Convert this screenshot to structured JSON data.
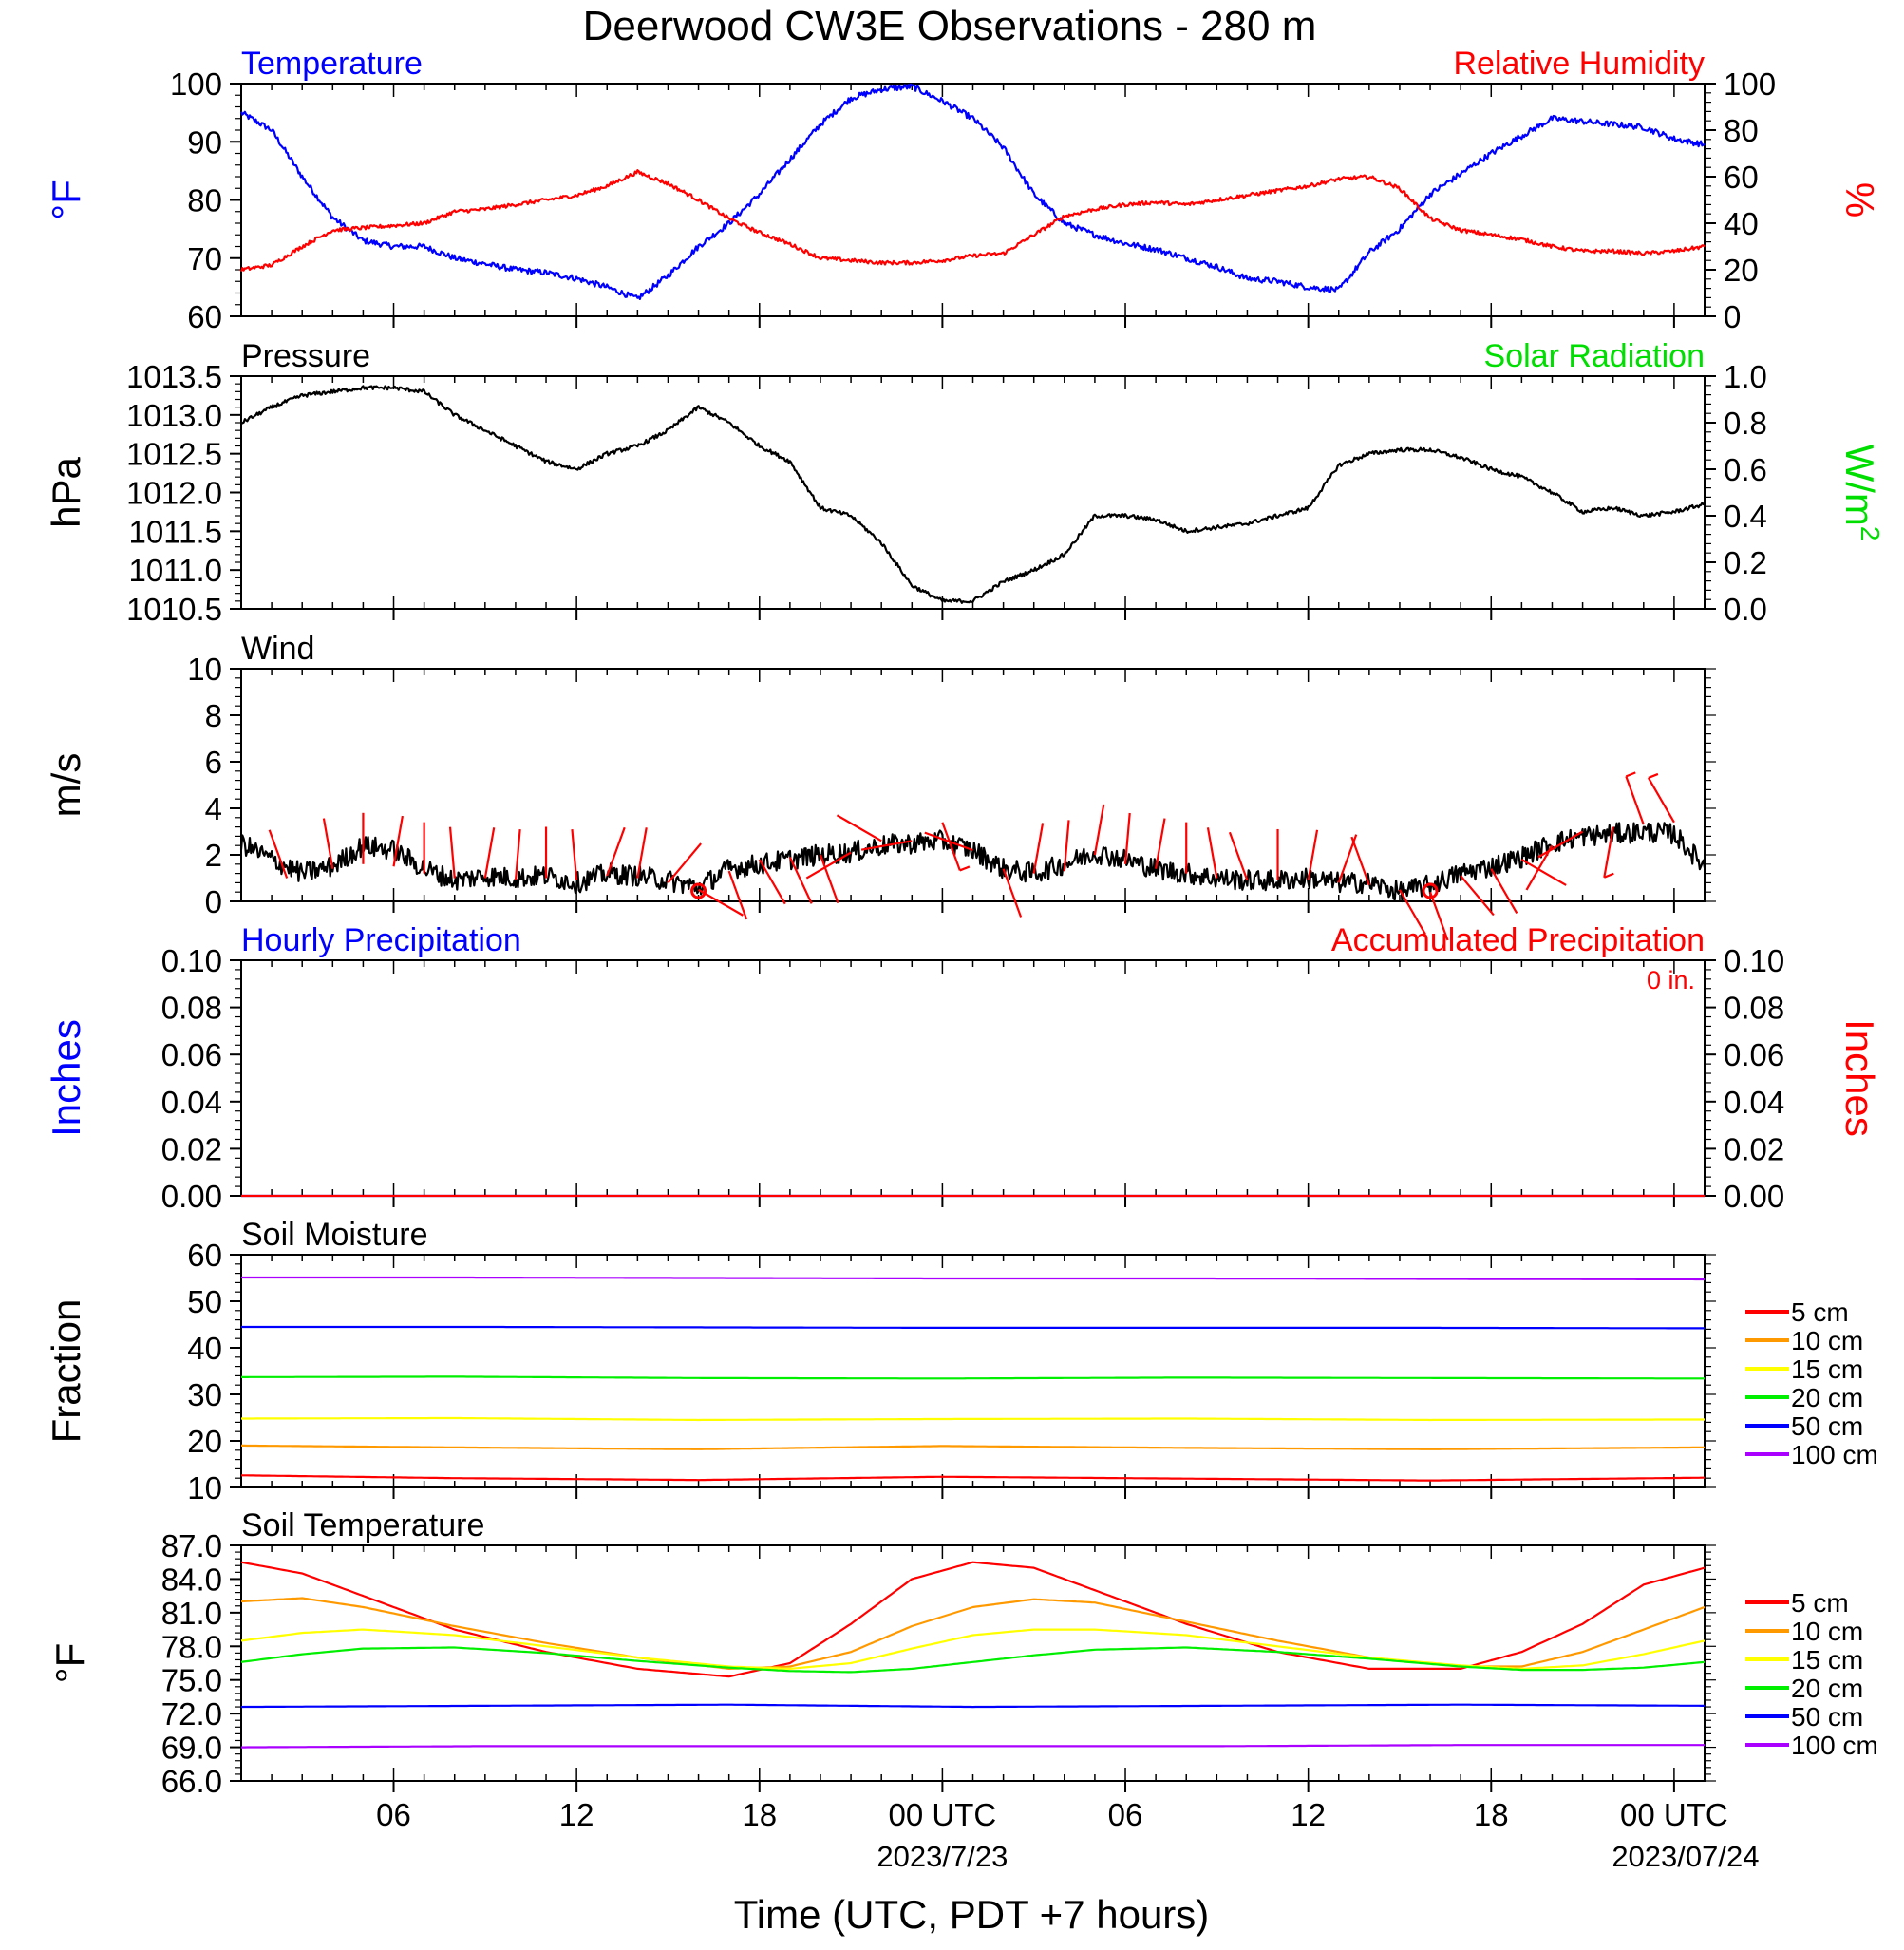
{
  "title": "Deerwood CW3E Observations - 280 m",
  "xaxis": {
    "label": "Time (UTC, PDT +7 hours)",
    "ticks": [
      "06",
      "12",
      "18",
      "00 UTC",
      "06",
      "12",
      "18",
      "00 UTC"
    ],
    "tick_hours": [
      6,
      12,
      18,
      24,
      30,
      36,
      42,
      48
    ],
    "dates": [
      "2023/7/23",
      "2023/07/24"
    ],
    "date_hours": [
      24,
      48
    ],
    "range_hours": [
      1,
      49
    ]
  },
  "colors": {
    "temperature": "#0000ff",
    "humidity": "#ff0000",
    "pressure": "#000000",
    "solar": "#00dd00",
    "wind_barb": "#ff0000"
  },
  "legend_entries": [
    "5 cm",
    "10 cm",
    "15 cm",
    "20 cm",
    "50 cm",
    "100 cm"
  ],
  "chart_data": [
    {
      "type": "line",
      "panel": "temperature-humidity",
      "left_title": "Temperature",
      "right_title": "Relative Humidity",
      "ylabel_left": "°F",
      "ylabel_right": "%",
      "ylim_left": [
        60,
        100
      ],
      "ylim_right": [
        0,
        100
      ],
      "yticks_left": [
        "60",
        "70",
        "80",
        "90",
        "100"
      ],
      "yticks_right": [
        "0",
        "20",
        "40",
        "60",
        "80",
        "100"
      ],
      "series": [
        {
          "color": "#0000ff",
          "axis": "left",
          "noise": 0.5,
          "x": [
            1,
            2,
            3,
            4,
            5,
            6,
            7,
            8,
            9,
            10,
            11,
            12,
            13,
            14,
            15,
            16,
            17,
            18,
            19,
            20,
            21,
            22,
            23,
            24,
            25,
            26,
            27,
            28,
            29,
            30,
            31,
            32,
            33,
            34,
            35,
            36,
            37,
            38,
            39,
            40,
            41,
            42,
            43,
            44,
            45,
            46,
            47,
            48,
            49
          ],
          "y": [
            95,
            92,
            84,
            77,
            73,
            72,
            72,
            70,
            69,
            68,
            67.5,
            66.5,
            65,
            63,
            67,
            72,
            76,
            81,
            87,
            93,
            97.5,
            99,
            99.5,
            97,
            94,
            89,
            81,
            76,
            74,
            72.5,
            71.5,
            70,
            68.5,
            66.5,
            66,
            65,
            64.5,
            71,
            75,
            81,
            84.5,
            88,
            91,
            94,
            93.5,
            93,
            92.5,
            90.5,
            89.5
          ]
        },
        {
          "color": "#ff0000",
          "axis": "right",
          "noise": 0.8,
          "x": [
            1,
            2,
            3,
            4,
            5,
            6,
            7,
            8,
            9,
            10,
            11,
            12,
            13,
            14,
            15,
            16,
            17,
            18,
            19,
            20,
            21,
            22,
            23,
            24,
            25,
            26,
            27,
            28,
            29,
            30,
            31,
            32,
            33,
            34,
            35,
            36,
            37,
            38,
            39,
            40,
            41,
            42,
            43,
            44,
            45,
            46,
            47,
            48,
            49
          ],
          "y": [
            20,
            22,
            30,
            37,
            38,
            39,
            40,
            45,
            46,
            48,
            50,
            52,
            56,
            62,
            57,
            50,
            42,
            36,
            31,
            25,
            24,
            23,
            23,
            24,
            26,
            27,
            35,
            43,
            46,
            48,
            49,
            48,
            50,
            52,
            54,
            56,
            59,
            60,
            55,
            42,
            37,
            35,
            33,
            30,
            28,
            28,
            27,
            28,
            30
          ]
        }
      ]
    },
    {
      "type": "line",
      "panel": "pressure-solar",
      "left_title": "Pressure",
      "right_title": "Solar Radiation",
      "ylabel_left": "hPa",
      "ylabel_right": "W/m",
      "ylabel_right_sup": "2",
      "ylim_left": [
        1010.5,
        1013.5
      ],
      "ylim_right": [
        0,
        1
      ],
      "yticks_left": [
        "1010.5",
        "1011.0",
        "1011.5",
        "1012.0",
        "1012.5",
        "1013.0",
        "1013.5"
      ],
      "yticks_right": [
        "0.0",
        "0.2",
        "0.4",
        "0.6",
        "0.8",
        "1.0"
      ],
      "series": [
        {
          "color": "#000000",
          "axis": "left",
          "noise": 0.025,
          "x": [
            1,
            2,
            3,
            4,
            5,
            6,
            7,
            8,
            9,
            10,
            11,
            12,
            13,
            14,
            15,
            16,
            17,
            18,
            19,
            20,
            21,
            22,
            23,
            24,
            25,
            26,
            27,
            28,
            29,
            30,
            31,
            32,
            33,
            34,
            35,
            36,
            37,
            38,
            39,
            40,
            41,
            42,
            43,
            44,
            45,
            46,
            47,
            48,
            49
          ],
          "y": [
            1012.9,
            1013.1,
            1013.25,
            1013.3,
            1013.35,
            1013.35,
            1013.3,
            1013.0,
            1012.8,
            1012.6,
            1012.4,
            1012.3,
            1012.5,
            1012.6,
            1012.8,
            1013.1,
            1012.9,
            1012.6,
            1012.4,
            1011.8,
            1011.7,
            1011.35,
            1010.8,
            1010.6,
            1010.6,
            1010.85,
            1011.0,
            1011.2,
            1011.7,
            1011.7,
            1011.65,
            1011.5,
            1011.55,
            1011.6,
            1011.7,
            1011.8,
            1012.35,
            1012.5,
            1012.55,
            1012.55,
            1012.45,
            1012.3,
            1012.2,
            1012.0,
            1011.75,
            1011.8,
            1011.7,
            1011.75,
            1011.85
          ]
        }
      ]
    },
    {
      "type": "line",
      "panel": "wind",
      "left_title": "Wind",
      "ylabel_left": "m/s",
      "ylim_left": [
        0,
        10
      ],
      "yticks_left": [
        "0",
        "2",
        "4",
        "6",
        "8",
        "10"
      ],
      "series": [
        {
          "color": "#000000",
          "axis": "left",
          "noise": 0.45,
          "x": [
            1,
            2,
            3,
            4,
            5,
            6,
            7,
            8,
            9,
            10,
            11,
            12,
            13,
            14,
            15,
            16,
            17,
            18,
            19,
            20,
            21,
            22,
            23,
            24,
            25,
            26,
            27,
            28,
            29,
            30,
            31,
            32,
            33,
            34,
            35,
            36,
            37,
            38,
            39,
            40,
            41,
            42,
            43,
            44,
            45,
            46,
            47,
            48,
            49
          ],
          "y": [
            2.5,
            1.8,
            1.2,
            1.5,
            2.4,
            2.2,
            1.4,
            0.9,
            1.1,
            1.0,
            1.1,
            0.8,
            1.2,
            1.1,
            0.9,
            0.6,
            1.4,
            1.6,
            1.8,
            2.0,
            2.1,
            2.4,
            2.5,
            2.6,
            2.2,
            1.4,
            1.2,
            1.6,
            2.1,
            1.8,
            1.4,
            1.2,
            1.0,
            0.9,
            0.9,
            1.0,
            0.8,
            0.8,
            0.4,
            0.7,
            1.2,
            1.5,
            1.9,
            2.5,
            2.8,
            2.9,
            3.0,
            2.9,
            1.5
          ]
        }
      ],
      "barbs_x": [
        2.5,
        4,
        5,
        6,
        7,
        8,
        9,
        10,
        11,
        12,
        13,
        14,
        15,
        16,
        17,
        18,
        19,
        20,
        21,
        22,
        23,
        24,
        25,
        26,
        27,
        28,
        29,
        30,
        31,
        32,
        33,
        34,
        35,
        36,
        37,
        38,
        39,
        40,
        41,
        42,
        43,
        44,
        45,
        46,
        47,
        48
      ],
      "barbs_speed": [
        1.0,
        1.4,
        1.6,
        1.5,
        1.2,
        1.0,
        1.0,
        0.9,
        1.0,
        0.9,
        1.1,
        1.0,
        0.8,
        0.5,
        1.3,
        1.8,
        1.9,
        2.0,
        2.1,
        2.6,
        2.6,
        3.4,
        2.2,
        1.4,
        1.2,
        1.3,
        2.0,
        1.6,
        1.4,
        1.2,
        1.0,
        0.9,
        0.9,
        0.9,
        0.8,
        0.7,
        0.5,
        0.4,
        1.1,
        1.4,
        1.8,
        2.4,
        3.0,
        3.2,
        3.3,
        3.4
      ],
      "barbs_angle": [
        200,
        190,
        180,
        170,
        180,
        185,
        170,
        175,
        180,
        185,
        160,
        170,
        140,
        60,
        20,
        30,
        25,
        20,
        300,
        240,
        280,
        20,
        250,
        20,
        170,
        175,
        170,
        175,
        170,
        180,
        190,
        200,
        180,
        170,
        160,
        200,
        30,
        20,
        40,
        30,
        60,
        330,
        300,
        350,
        200,
        210
      ],
      "calm_x": [
        16,
        40
      ]
    },
    {
      "type": "line",
      "panel": "precipitation",
      "left_title": "Hourly Precipitation",
      "right_title": "Accumulated Precipitation",
      "total": "0 in.",
      "ylabel_left": "Inches",
      "ylabel_right": "Inches",
      "ylim_left": [
        0,
        0.1
      ],
      "ylim_right": [
        0,
        0.1
      ],
      "yticks_left": [
        "0.00",
        "0.02",
        "0.04",
        "0.06",
        "0.08",
        "0.10"
      ],
      "yticks_right": [
        "0.00",
        "0.02",
        "0.04",
        "0.06",
        "0.08",
        "0.10"
      ],
      "series": [
        {
          "color": "#0000ff",
          "axis": "left",
          "x": [
            1,
            49
          ],
          "y": [
            0,
            0
          ]
        },
        {
          "color": "#ff0000",
          "axis": "left",
          "x": [
            1,
            49
          ],
          "y": [
            0,
            0
          ]
        }
      ]
    },
    {
      "type": "line",
      "panel": "soil-moisture",
      "left_title": "Soil Moisture",
      "ylabel_left": "Fraction",
      "ylim_left": [
        10,
        60
      ],
      "yticks_left": [
        "10",
        "20",
        "30",
        "40",
        "50",
        "60"
      ],
      "legend": [
        "5 cm",
        "10 cm",
        "15 cm",
        "20 cm",
        "50 cm",
        "100 cm"
      ],
      "series": [
        {
          "name": "5 cm",
          "color": "#ff0000",
          "axis": "left",
          "x": [
            1,
            8,
            16,
            24,
            32,
            40,
            49
          ],
          "y": [
            12.6,
            12.0,
            11.6,
            12.3,
            11.9,
            11.5,
            12.1
          ]
        },
        {
          "name": "10 cm",
          "color": "#ff9900",
          "axis": "left",
          "x": [
            1,
            8,
            16,
            24,
            32,
            40,
            49
          ],
          "y": [
            19.0,
            18.6,
            18.2,
            18.9,
            18.5,
            18.2,
            18.6
          ]
        },
        {
          "name": "15 cm",
          "color": "#ffff00",
          "axis": "left",
          "x": [
            1,
            8,
            16,
            24,
            32,
            40,
            49
          ],
          "y": [
            24.8,
            24.9,
            24.5,
            24.7,
            24.8,
            24.5,
            24.6
          ]
        },
        {
          "name": "20 cm",
          "color": "#00ee00",
          "axis": "left",
          "x": [
            1,
            8,
            16,
            24,
            32,
            40,
            49
          ],
          "y": [
            33.7,
            33.8,
            33.5,
            33.4,
            33.6,
            33.5,
            33.4
          ]
        },
        {
          "name": "50 cm",
          "color": "#0000ff",
          "axis": "left",
          "x": [
            1,
            8,
            16,
            24,
            32,
            40,
            49
          ],
          "y": [
            44.5,
            44.5,
            44.4,
            44.3,
            44.3,
            44.3,
            44.2
          ]
        },
        {
          "name": "100 cm",
          "color": "#aa00ff",
          "axis": "left",
          "x": [
            1,
            8,
            16,
            24,
            32,
            40,
            49
          ],
          "y": [
            55.1,
            55.1,
            55.0,
            54.9,
            54.9,
            54.8,
            54.7
          ]
        }
      ]
    },
    {
      "type": "line",
      "panel": "soil-temperature",
      "left_title": "Soil Temperature",
      "ylabel_left": "°F",
      "ylim_left": [
        66,
        87
      ],
      "yticks_left": [
        "66.0",
        "69.0",
        "72.0",
        "75.0",
        "78.0",
        "81.0",
        "84.0",
        "87.0"
      ],
      "legend": [
        "5 cm",
        "10 cm",
        "15 cm",
        "20 cm",
        "50 cm",
        "100 cm"
      ],
      "series": [
        {
          "name": "5 cm",
          "color": "#ff0000",
          "axis": "left",
          "x": [
            1,
            3,
            5,
            8,
            11,
            14,
            17,
            19,
            21,
            23,
            25,
            27,
            29,
            32,
            35,
            38,
            41,
            43,
            45,
            47,
            49
          ],
          "y": [
            85.5,
            84.5,
            82.5,
            79.5,
            77.5,
            76.0,
            75.3,
            76.5,
            80.0,
            84.0,
            85.5,
            85.0,
            83.0,
            80.0,
            77.5,
            76.0,
            76.0,
            77.5,
            80.0,
            83.5,
            85.0
          ]
        },
        {
          "name": "10 cm",
          "color": "#ff9900",
          "axis": "left",
          "x": [
            1,
            3,
            5,
            8,
            11,
            14,
            17,
            19,
            21,
            23,
            25,
            27,
            29,
            32,
            35,
            38,
            41,
            43,
            45,
            47,
            49
          ],
          "y": [
            82.0,
            82.3,
            81.5,
            79.8,
            78.3,
            77.0,
            76.0,
            76.2,
            77.5,
            79.8,
            81.5,
            82.2,
            81.9,
            80.2,
            78.5,
            77.0,
            76.2,
            76.2,
            77.5,
            79.5,
            81.5
          ]
        },
        {
          "name": "15 cm",
          "color": "#ffff00",
          "axis": "left",
          "x": [
            1,
            3,
            5,
            8,
            11,
            14,
            17,
            19,
            21,
            23,
            25,
            27,
            29,
            32,
            35,
            38,
            41,
            43,
            45,
            47,
            49
          ],
          "y": [
            78.5,
            79.2,
            79.5,
            79.0,
            78.0,
            77.0,
            76.2,
            76.0,
            76.5,
            77.8,
            79.0,
            79.5,
            79.5,
            79.0,
            78.0,
            77.0,
            76.3,
            76.0,
            76.3,
            77.3,
            78.5
          ]
        },
        {
          "name": "20 cm",
          "color": "#00ee00",
          "axis": "left",
          "x": [
            1,
            3,
            5,
            8,
            11,
            14,
            17,
            19,
            21,
            23,
            25,
            27,
            29,
            32,
            35,
            38,
            41,
            43,
            45,
            47,
            49
          ],
          "y": [
            76.6,
            77.3,
            77.8,
            77.9,
            77.4,
            76.7,
            76.1,
            75.8,
            75.7,
            76.0,
            76.6,
            77.2,
            77.7,
            77.9,
            77.5,
            76.9,
            76.2,
            75.9,
            75.9,
            76.1,
            76.6
          ]
        },
        {
          "name": "50 cm",
          "color": "#0000ff",
          "axis": "left",
          "x": [
            1,
            9,
            17,
            25,
            33,
            41,
            49
          ],
          "y": [
            72.6,
            72.7,
            72.8,
            72.6,
            72.7,
            72.8,
            72.7
          ]
        },
        {
          "name": "100 cm",
          "color": "#aa00ff",
          "axis": "left",
          "x": [
            1,
            9,
            17,
            25,
            33,
            41,
            49
          ],
          "y": [
            69.0,
            69.1,
            69.1,
            69.1,
            69.1,
            69.2,
            69.2
          ]
        }
      ]
    }
  ]
}
